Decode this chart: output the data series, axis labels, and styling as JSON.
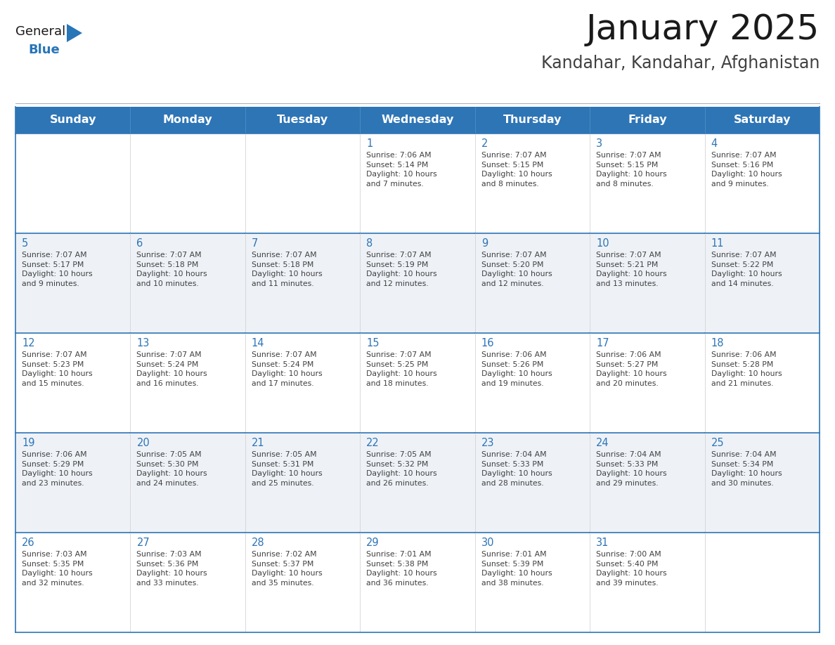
{
  "title": "January 2025",
  "subtitle": "Kandahar, Kandahar, Afghanistan",
  "days_of_week": [
    "Sunday",
    "Monday",
    "Tuesday",
    "Wednesday",
    "Thursday",
    "Friday",
    "Saturday"
  ],
  "header_bg": "#2E75B6",
  "header_text": "#FFFFFF",
  "row_bg_odd": "#FFFFFF",
  "row_bg_even": "#EEF2F7",
  "cell_border_color": "#2E75B6",
  "row_divider_color": "#2E75B6",
  "day_number_color": "#2E75B6",
  "cell_text_color": "#404040",
  "title_color": "#1A1A1A",
  "subtitle_color": "#404040",
  "logo_general_color": "#1A1A1A",
  "logo_blue_color": "#2875B8",
  "calendar_data": [
    [
      {
        "day": "",
        "info": ""
      },
      {
        "day": "",
        "info": ""
      },
      {
        "day": "",
        "info": ""
      },
      {
        "day": "1",
        "info": "Sunrise: 7:06 AM\nSunset: 5:14 PM\nDaylight: 10 hours\nand 7 minutes."
      },
      {
        "day": "2",
        "info": "Sunrise: 7:07 AM\nSunset: 5:15 PM\nDaylight: 10 hours\nand 8 minutes."
      },
      {
        "day": "3",
        "info": "Sunrise: 7:07 AM\nSunset: 5:15 PM\nDaylight: 10 hours\nand 8 minutes."
      },
      {
        "day": "4",
        "info": "Sunrise: 7:07 AM\nSunset: 5:16 PM\nDaylight: 10 hours\nand 9 minutes."
      }
    ],
    [
      {
        "day": "5",
        "info": "Sunrise: 7:07 AM\nSunset: 5:17 PM\nDaylight: 10 hours\nand 9 minutes."
      },
      {
        "day": "6",
        "info": "Sunrise: 7:07 AM\nSunset: 5:18 PM\nDaylight: 10 hours\nand 10 minutes."
      },
      {
        "day": "7",
        "info": "Sunrise: 7:07 AM\nSunset: 5:18 PM\nDaylight: 10 hours\nand 11 minutes."
      },
      {
        "day": "8",
        "info": "Sunrise: 7:07 AM\nSunset: 5:19 PM\nDaylight: 10 hours\nand 12 minutes."
      },
      {
        "day": "9",
        "info": "Sunrise: 7:07 AM\nSunset: 5:20 PM\nDaylight: 10 hours\nand 12 minutes."
      },
      {
        "day": "10",
        "info": "Sunrise: 7:07 AM\nSunset: 5:21 PM\nDaylight: 10 hours\nand 13 minutes."
      },
      {
        "day": "11",
        "info": "Sunrise: 7:07 AM\nSunset: 5:22 PM\nDaylight: 10 hours\nand 14 minutes."
      }
    ],
    [
      {
        "day": "12",
        "info": "Sunrise: 7:07 AM\nSunset: 5:23 PM\nDaylight: 10 hours\nand 15 minutes."
      },
      {
        "day": "13",
        "info": "Sunrise: 7:07 AM\nSunset: 5:24 PM\nDaylight: 10 hours\nand 16 minutes."
      },
      {
        "day": "14",
        "info": "Sunrise: 7:07 AM\nSunset: 5:24 PM\nDaylight: 10 hours\nand 17 minutes."
      },
      {
        "day": "15",
        "info": "Sunrise: 7:07 AM\nSunset: 5:25 PM\nDaylight: 10 hours\nand 18 minutes."
      },
      {
        "day": "16",
        "info": "Sunrise: 7:06 AM\nSunset: 5:26 PM\nDaylight: 10 hours\nand 19 minutes."
      },
      {
        "day": "17",
        "info": "Sunrise: 7:06 AM\nSunset: 5:27 PM\nDaylight: 10 hours\nand 20 minutes."
      },
      {
        "day": "18",
        "info": "Sunrise: 7:06 AM\nSunset: 5:28 PM\nDaylight: 10 hours\nand 21 minutes."
      }
    ],
    [
      {
        "day": "19",
        "info": "Sunrise: 7:06 AM\nSunset: 5:29 PM\nDaylight: 10 hours\nand 23 minutes."
      },
      {
        "day": "20",
        "info": "Sunrise: 7:05 AM\nSunset: 5:30 PM\nDaylight: 10 hours\nand 24 minutes."
      },
      {
        "day": "21",
        "info": "Sunrise: 7:05 AM\nSunset: 5:31 PM\nDaylight: 10 hours\nand 25 minutes."
      },
      {
        "day": "22",
        "info": "Sunrise: 7:05 AM\nSunset: 5:32 PM\nDaylight: 10 hours\nand 26 minutes."
      },
      {
        "day": "23",
        "info": "Sunrise: 7:04 AM\nSunset: 5:33 PM\nDaylight: 10 hours\nand 28 minutes."
      },
      {
        "day": "24",
        "info": "Sunrise: 7:04 AM\nSunset: 5:33 PM\nDaylight: 10 hours\nand 29 minutes."
      },
      {
        "day": "25",
        "info": "Sunrise: 7:04 AM\nSunset: 5:34 PM\nDaylight: 10 hours\nand 30 minutes."
      }
    ],
    [
      {
        "day": "26",
        "info": "Sunrise: 7:03 AM\nSunset: 5:35 PM\nDaylight: 10 hours\nand 32 minutes."
      },
      {
        "day": "27",
        "info": "Sunrise: 7:03 AM\nSunset: 5:36 PM\nDaylight: 10 hours\nand 33 minutes."
      },
      {
        "day": "28",
        "info": "Sunrise: 7:02 AM\nSunset: 5:37 PM\nDaylight: 10 hours\nand 35 minutes."
      },
      {
        "day": "29",
        "info": "Sunrise: 7:01 AM\nSunset: 5:38 PM\nDaylight: 10 hours\nand 36 minutes."
      },
      {
        "day": "30",
        "info": "Sunrise: 7:01 AM\nSunset: 5:39 PM\nDaylight: 10 hours\nand 38 minutes."
      },
      {
        "day": "31",
        "info": "Sunrise: 7:00 AM\nSunset: 5:40 PM\nDaylight: 10 hours\nand 39 minutes."
      },
      {
        "day": "",
        "info": ""
      }
    ]
  ]
}
